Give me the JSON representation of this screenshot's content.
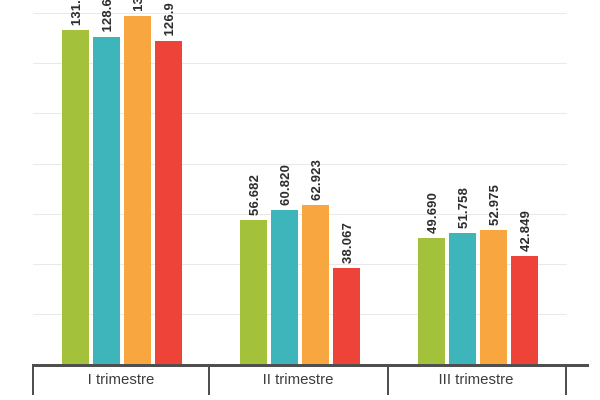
{
  "chart_data": {
    "type": "bar",
    "title": "",
    "xlabel": "",
    "ylabel": "",
    "categories": [
      "I trimestre",
      "II trimestre",
      "III trimestre"
    ],
    "series": [
      {
        "name": "green",
        "color": "#a3c13a",
        "values": [
          131.5,
          56.682,
          49.69
        ],
        "labels": [
          "131.",
          "56.682",
          "49.690"
        ]
      },
      {
        "name": "teal",
        "color": "#3eb4bb",
        "values": [
          128.65,
          60.82,
          51.758
        ],
        "labels": [
          "128.6",
          "60.820",
          "51.758"
        ]
      },
      {
        "name": "orange",
        "color": "#f8a640",
        "values": [
          136.7,
          62.923,
          52.975
        ],
        "labels": [
          "13",
          "62.923",
          "52.975"
        ]
      },
      {
        "name": "red",
        "color": "#ee4338",
        "values": [
          126.9,
          38.067,
          42.849
        ],
        "labels": [
          "126.9",
          "38.067",
          "42.849"
        ]
      }
    ],
    "ylim": [
      0,
      143
    ],
    "grid": true,
    "gridline_step": 20,
    "legend_position": "none",
    "value_labels_rotated": true,
    "note": "Chart viewport is cropped at the top: value labels of group 'I trimestre' are clipped; group-I numeric values estimated from bar heights."
  },
  "colors": {
    "background": "#ffffff",
    "gridline": "#e9e9e9",
    "axis": "#4f4f4f",
    "value_label_text": "#2e2e2e",
    "category_label_text": "#3d3d3d"
  }
}
